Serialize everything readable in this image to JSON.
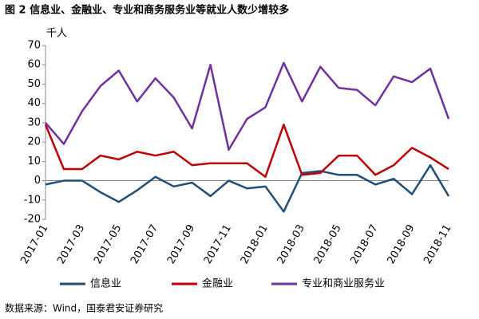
{
  "chart_data": {
    "type": "line",
    "title": "图 2 信息业、金融业、专业和商务服务业等就业人数少增较多",
    "y_label": "千人",
    "source": "数据来源：Wind，国泰君安证券研究",
    "categories": [
      "2017-01",
      null,
      "2017-03",
      null,
      "2017-05",
      null,
      "2017-07",
      null,
      "2017-09",
      null,
      "2017-11",
      null,
      "2018-01",
      null,
      "2018-03",
      null,
      "2018-05",
      null,
      "2018-07",
      null,
      "2018-09",
      null,
      "2018-11"
    ],
    "series": [
      {
        "name": "信息业",
        "color": "#1f4e79",
        "values": [
          -2,
          0,
          0,
          -6,
          -11,
          -5,
          2,
          -3,
          -1,
          -8,
          0,
          -4,
          -3,
          -16,
          4,
          5,
          3,
          3,
          -2,
          1,
          -7,
          8,
          -8
        ]
      },
      {
        "name": "金融业",
        "color": "#c00000",
        "values": [
          29,
          6,
          6,
          13,
          11,
          15,
          13,
          15,
          8,
          9,
          9,
          9,
          2,
          29,
          3,
          4,
          13,
          13,
          3,
          8,
          17,
          12,
          6
        ]
      },
      {
        "name": "专业和商业服务业",
        "color": "#7030a0",
        "values": [
          30,
          19,
          36,
          49,
          57,
          41,
          53,
          43,
          27,
          60,
          16,
          32,
          38,
          61,
          41,
          59,
          48,
          47,
          39,
          54,
          51,
          58,
          32
        ]
      }
    ],
    "ylim": [
      -20,
      70
    ],
    "yticks": [
      -20,
      -10,
      0,
      10,
      20,
      30,
      40,
      50,
      60,
      70
    ],
    "legend": "bottom",
    "grid": false
  }
}
